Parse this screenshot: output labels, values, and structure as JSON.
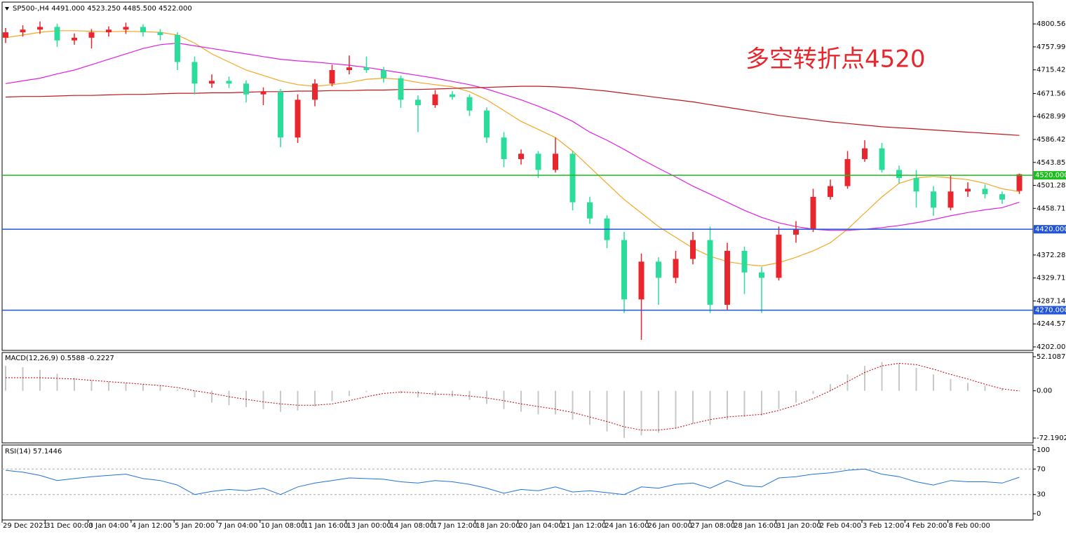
{
  "chart_data": [
    {
      "type": "candlestick",
      "title": "SP500-,H4  4491.000 4523.250 4485.500 4522.000",
      "annotation": "多空转折点4520",
      "open": [
        4775,
        4785,
        4790,
        4795,
        4770,
        4775,
        4785,
        4790,
        4795,
        4785,
        4780,
        4730,
        4690,
        4695,
        4690,
        4670,
        4675,
        4590,
        4660,
        4690,
        4715,
        4720,
        4715,
        4700,
        4660,
        4650,
        4670,
        4665,
        4640,
        4590,
        4550,
        4560,
        4530,
        4560,
        4470,
        4440,
        4400,
        4290,
        4360,
        4330,
        4365,
        4400,
        4280,
        4380,
        4340,
        4330,
        4410,
        4420,
        4480,
        4500,
        4550,
        4570,
        4530,
        4515,
        4490,
        4460,
        4490,
        4495,
        4485,
        4491
      ],
      "high": [
        4793,
        4798,
        4805,
        4801,
        4783,
        4791,
        4796,
        4803,
        4800,
        4791,
        4785,
        4740,
        4707,
        4703,
        4696,
        4683,
        4680,
        4670,
        4698,
        4725,
        4742,
        4740,
        4721,
        4705,
        4668,
        4678,
        4676,
        4670,
        4646,
        4600,
        4568,
        4565,
        4590,
        4565,
        4480,
        4446,
        4415,
        4375,
        4368,
        4380,
        4415,
        4425,
        4395,
        4388,
        4350,
        4425,
        4435,
        4495,
        4512,
        4565,
        4585,
        4580,
        4538,
        4530,
        4500,
        4520,
        4507,
        4503,
        4490,
        4523.25
      ],
      "low": [
        4765,
        4777,
        4782,
        4758,
        4762,
        4755,
        4777,
        4782,
        4777,
        4770,
        4715,
        4670,
        4682,
        4682,
        4655,
        4650,
        4572,
        4580,
        4648,
        4685,
        4707,
        4710,
        4692,
        4645,
        4600,
        4645,
        4660,
        4630,
        4580,
        4535,
        4540,
        4515,
        4525,
        4455,
        4430,
        4385,
        4265,
        4215,
        4280,
        4320,
        4355,
        4265,
        4270,
        4300,
        4265,
        4325,
        4395,
        4415,
        4475,
        4495,
        4545,
        4525,
        4505,
        4460,
        4445,
        4455,
        4480,
        4477,
        4467,
        4485.5
      ],
      "close": [
        4785,
        4790,
        4795,
        4770,
        4775,
        4785,
        4790,
        4795,
        4785,
        4780,
        4730,
        4690,
        4695,
        4690,
        4670,
        4675,
        4590,
        4660,
        4690,
        4715,
        4720,
        4715,
        4700,
        4660,
        4650,
        4670,
        4665,
        4640,
        4590,
        4550,
        4560,
        4530,
        4560,
        4470,
        4440,
        4400,
        4290,
        4360,
        4330,
        4365,
        4400,
        4280,
        4380,
        4340,
        4330,
        4410,
        4420,
        4480,
        4500,
        4550,
        4570,
        4530,
        4515,
        4490,
        4460,
        4490,
        4495,
        4485,
        4475,
        4522
      ],
      "up_color": "#e8262d",
      "down_color": "#2bdc9a",
      "series": [
        {
          "color": "#f5a623",
          "values": [
            4775,
            4780,
            4785,
            4788,
            4788,
            4787,
            4786,
            4787,
            4786,
            4785,
            4780,
            4765,
            4745,
            4730,
            4715,
            4705,
            4695,
            4688,
            4685,
            4688,
            4692,
            4698,
            4700,
            4698,
            4692,
            4688,
            4684,
            4675,
            4660,
            4640,
            4620,
            4605,
            4590,
            4565,
            4535,
            4505,
            4475,
            4450,
            4425,
            4405,
            4385,
            4370,
            4360,
            4355,
            4352,
            4358,
            4368,
            4380,
            4395,
            4420,
            4450,
            4480,
            4505,
            4515,
            4518,
            4515,
            4512,
            4505,
            4495,
            4490
          ]
        },
        {
          "color": "#e020e0",
          "values": [
            4690,
            4695,
            4700,
            4708,
            4715,
            4725,
            4735,
            4745,
            4755,
            4762,
            4765,
            4760,
            4755,
            4750,
            4745,
            4740,
            4735,
            4732,
            4730,
            4727,
            4724,
            4720,
            4715,
            4710,
            4705,
            4700,
            4694,
            4688,
            4680,
            4670,
            4660,
            4648,
            4635,
            4620,
            4600,
            4585,
            4568,
            4550,
            4533,
            4517,
            4500,
            4485,
            4470,
            4455,
            4442,
            4432,
            4425,
            4420,
            4418,
            4418,
            4420,
            4423,
            4427,
            4432,
            4438,
            4445,
            4451,
            4456,
            4460,
            4470
          ]
        },
        {
          "color": "#c0161b",
          "values": [
            4665,
            4666,
            4666,
            4667,
            4668,
            4668,
            4669,
            4670,
            4670,
            4671,
            4672,
            4672,
            4673,
            4673,
            4674,
            4675,
            4675,
            4676,
            4676,
            4677,
            4677,
            4678,
            4678,
            4679,
            4679,
            4680,
            4681,
            4682,
            4683,
            4684,
            4685,
            4685,
            4684,
            4682,
            4679,
            4676,
            4672,
            4668,
            4664,
            4660,
            4656,
            4651,
            4646,
            4641,
            4636,
            4631,
            4627,
            4623,
            4619,
            4616,
            4613,
            4610,
            4608,
            4606,
            4604,
            4602,
            4600,
            4598,
            4596,
            4594
          ]
        }
      ],
      "levels": [
        {
          "value": 4520,
          "label": "4520.000",
          "color": "#1bbf1b"
        },
        {
          "value": 4420,
          "label": "4420.000",
          "color": "#2255dd"
        },
        {
          "value": 4270,
          "label": "4270.000",
          "color": "#2255dd"
        }
      ],
      "ylim": [
        4195.5,
        4841
      ],
      "yticks": [
        {
          "value": 4800.56,
          "label": "4800.560"
        },
        {
          "value": 4757.99,
          "label": "4757.990"
        },
        {
          "value": 4715.42,
          "label": "4715.420"
        },
        {
          "value": 4671.56,
          "label": "4671.560"
        },
        {
          "value": 4628.99,
          "label": "4628.990"
        },
        {
          "value": 4586.42,
          "label": "4586.420"
        },
        {
          "value": 4543.85,
          "label": "4543.850"
        },
        {
          "value": 4501.28,
          "label": "4501.280"
        },
        {
          "value": 4458.71,
          "label": "4458.710"
        },
        {
          "value": 4372.28,
          "label": "4372.280"
        },
        {
          "value": 4329.71,
          "label": "4329.710"
        },
        {
          "value": 4287.14,
          "label": "4287.140"
        },
        {
          "value": 4244.57,
          "label": "4244.570"
        },
        {
          "value": 4202,
          "label": "4202.000"
        }
      ]
    },
    {
      "type": "macd",
      "title": "MACD(12,26,9) 0.5588 -0.2227",
      "series": [
        {
          "color": "#c8c8c8",
          "values": [
            38,
            36,
            32,
            26,
            20,
            16,
            14,
            12,
            10,
            8,
            2,
            -10,
            -18,
            -22,
            -25,
            -28,
            -32,
            -30,
            -24,
            -16,
            -8,
            -2,
            1,
            -4,
            -10,
            -8,
            -9,
            -14,
            -20,
            -28,
            -32,
            -36,
            -36,
            -44,
            -52,
            -62,
            -72,
            -68,
            -64,
            -58,
            -50,
            -52,
            -44,
            -40,
            -38,
            -28,
            -18,
            -5,
            10,
            25,
            38,
            44,
            42,
            35,
            25,
            18,
            12,
            8,
            4,
            0.5588
          ]
        },
        {
          "color": "#c00000",
          "values": [
            20,
            20,
            20,
            19,
            18,
            16,
            14,
            12,
            10,
            8,
            5,
            0,
            -4,
            -9,
            -13,
            -17,
            -20,
            -22,
            -22,
            -20,
            -15,
            -9,
            -4,
            -2,
            -3,
            -5,
            -6,
            -8,
            -11,
            -15,
            -20,
            -24,
            -28,
            -33,
            -40,
            -47,
            -55,
            -60,
            -60,
            -57,
            -50,
            -44,
            -40,
            -38,
            -36,
            -30,
            -22,
            -12,
            0,
            14,
            28,
            38,
            42,
            40,
            33,
            25,
            18,
            10,
            3,
            -0.2227
          ]
        }
      ],
      "ylim": [
        -79.6,
        58.5
      ],
      "yticks": [
        52.1087,
        {
          "value": 0,
          "label": "0.00"
        },
        -72.1902
      ]
    },
    {
      "type": "line",
      "title": "RSI(14) 57.1446",
      "color": "#1e73d8",
      "values": [
        68,
        65,
        60,
        52,
        55,
        58,
        60,
        62,
        55,
        52,
        45,
        30,
        35,
        38,
        36,
        40,
        30,
        42,
        48,
        52,
        56,
        55,
        54,
        50,
        48,
        52,
        50,
        46,
        40,
        32,
        38,
        36,
        42,
        34,
        36,
        33,
        30,
        42,
        40,
        46,
        48,
        40,
        52,
        44,
        42,
        56,
        58,
        62,
        64,
        68,
        70,
        62,
        58,
        50,
        45,
        52,
        50,
        50,
        48,
        57.1446
      ],
      "levels": [
        70,
        30
      ],
      "ylim": [
        -9.8,
        107.6
      ],
      "yticks": [
        100,
        70,
        30,
        0
      ],
      "x_tick_labels": [
        "29 Dec 2021",
        "31 Dec 00:00",
        "3 Jan 04:00",
        "4 Jan 12:00",
        "5 Jan 20:00",
        "7 Jan 04:00",
        "10 Jan 08:00",
        "11 Jan 16:00",
        "13 Jan 00:00",
        "14 Jan 08:00",
        "17 Jan 12:00",
        "18 Jan 20:00",
        "20 Jan 04:00",
        "21 Jan 12:00",
        "24 Jan 16:00",
        "26 Jan 00:00",
        "27 Jan 08:00",
        "28 Jan 16:00",
        "31 Jan 20:00",
        "2 Feb 04:00",
        "3 Feb 12:00",
        "4 Feb 20:00",
        "8 Feb 00:00"
      ]
    }
  ]
}
